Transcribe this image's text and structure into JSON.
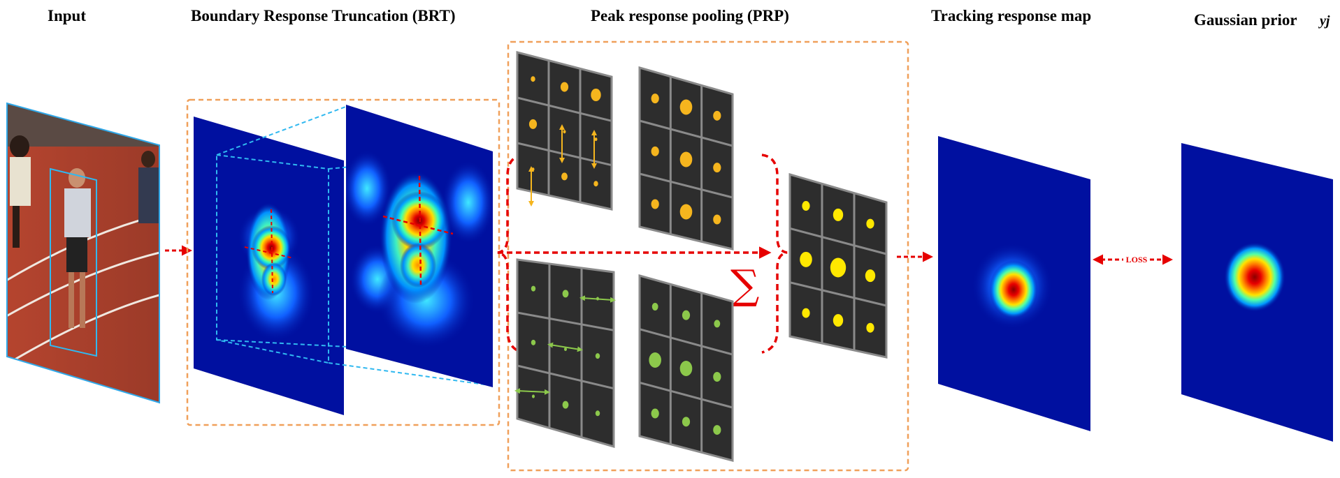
{
  "headings": {
    "input": "Input",
    "brt": "Boundary Response Truncation (BRT)",
    "prp": "Peak response pooling (PRP)",
    "tracking": "Tracking response map",
    "gaussian": "Gaussian prior",
    "gaussian_symbol": "yj"
  },
  "loss_label": "LOSS",
  "sum_symbol": "∑",
  "colors": {
    "orange_dash": "#f0a05a",
    "cyan": "#2aa8e0",
    "red_arrow": "#e60000",
    "panel_bg": "#2d2d2d",
    "panel_grid": "#8a8a8a",
    "yellow_dot": "#f5b51e",
    "green_dot": "#8cc84b",
    "final_dot": "#ffe800",
    "heat_bg": "#0010a0"
  },
  "grids": {
    "orange_top_left": [
      [
        1,
        3,
        4
      ],
      [
        3,
        0,
        0
      ],
      [
        0,
        2,
        1
      ]
    ],
    "orange_top_right": [
      [
        3,
        5,
        3
      ],
      [
        3,
        5,
        3
      ],
      [
        3,
        5,
        3
      ]
    ],
    "green_bottom_left": [
      [
        1,
        2,
        0
      ],
      [
        1,
        0,
        1
      ],
      [
        0,
        2,
        1
      ]
    ],
    "green_bottom_right": [
      [
        2,
        3,
        2
      ],
      [
        5,
        5,
        3
      ],
      [
        3,
        3,
        3
      ]
    ],
    "final": [
      [
        3,
        4,
        3
      ],
      [
        5,
        6,
        4
      ],
      [
        3,
        4,
        3
      ]
    ]
  }
}
